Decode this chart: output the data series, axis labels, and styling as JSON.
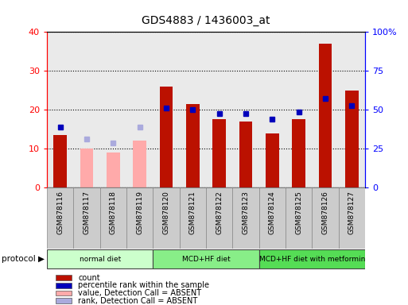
{
  "title": "GDS4883 / 1436003_at",
  "samples": [
    "GSM878116",
    "GSM878117",
    "GSM878118",
    "GSM878119",
    "GSM878120",
    "GSM878121",
    "GSM878122",
    "GSM878123",
    "GSM878124",
    "GSM878125",
    "GSM878126",
    "GSM878127"
  ],
  "count_values": [
    13.5,
    null,
    null,
    null,
    26.0,
    21.5,
    17.5,
    17.0,
    14.0,
    17.5,
    37.0,
    25.0
  ],
  "count_absent": [
    null,
    10.0,
    9.0,
    12.0,
    null,
    null,
    null,
    null,
    null,
    null,
    null,
    null
  ],
  "percentile_values": [
    15.5,
    null,
    null,
    null,
    20.5,
    20.0,
    19.0,
    19.0,
    17.5,
    19.5,
    23.0,
    21.0
  ],
  "percentile_absent": [
    null,
    12.5,
    11.5,
    15.5,
    null,
    null,
    null,
    null,
    null,
    null,
    null,
    null
  ],
  "left_ylim": [
    0,
    40
  ],
  "right_ylim": [
    0,
    40
  ],
  "left_yticks": [
    0,
    10,
    20,
    30,
    40
  ],
  "right_yticks": [
    0,
    10,
    20,
    30,
    40
  ],
  "right_tick_labels": [
    "0",
    "25",
    "50",
    "75",
    "100%"
  ],
  "bar_color_red": "#BB1100",
  "bar_color_pink": "#FFAAAA",
  "dot_color_blue": "#0000BB",
  "dot_color_lightblue": "#AAAADD",
  "protocol_groups": [
    {
      "label": "normal diet",
      "start": 0,
      "end": 3,
      "color": "#CCFFCC"
    },
    {
      "label": "MCD+HF diet",
      "start": 4,
      "end": 7,
      "color": "#88EE88"
    },
    {
      "label": "MCD+HF diet with metformin",
      "start": 8,
      "end": 11,
      "color": "#55DD55"
    }
  ],
  "legend_items": [
    {
      "color": "#BB1100",
      "label": "count"
    },
    {
      "color": "#0000BB",
      "label": "percentile rank within the sample"
    },
    {
      "color": "#FFAAAA",
      "label": "value, Detection Call = ABSENT"
    },
    {
      "color": "#AAAADD",
      "label": "rank, Detection Call = ABSENT"
    }
  ],
  "col_bg_color": "#DDDDDD",
  "plot_bg": "#FFFFFF",
  "label_box_color": "#CCCCCC"
}
